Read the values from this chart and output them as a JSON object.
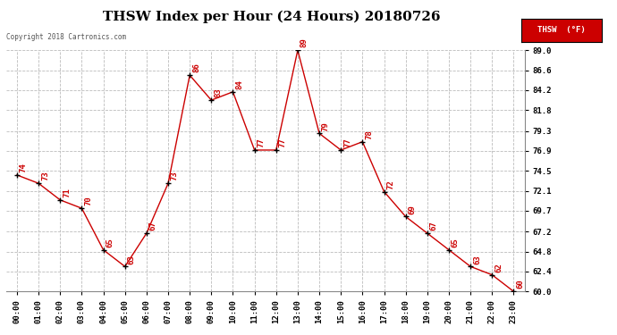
{
  "title": "THSW Index per Hour (24 Hours) 20180726",
  "copyright": "Copyright 2018 Cartronics.com",
  "legend_label": "THSW  (°F)",
  "hours": [
    0,
    1,
    2,
    3,
    4,
    5,
    6,
    7,
    8,
    9,
    10,
    11,
    12,
    13,
    14,
    15,
    16,
    17,
    18,
    19,
    20,
    21,
    22,
    23
  ],
  "values": [
    74,
    73,
    71,
    70,
    65,
    63,
    67,
    73,
    86,
    83,
    84,
    77,
    77,
    89,
    79,
    77,
    78,
    72,
    69,
    67,
    65,
    63,
    62,
    60
  ],
  "ylim_min": 60.0,
  "ylim_max": 89.0,
  "line_color": "#cc0000",
  "marker_color": "#000000",
  "label_color": "#cc0000",
  "bg_color": "#ffffff",
  "grid_color": "#bbbbbb",
  "title_fontsize": 11,
  "label_fontsize": 6.5,
  "tick_fontsize": 6.5,
  "yticks": [
    60.0,
    62.4,
    64.8,
    67.2,
    69.7,
    72.1,
    74.5,
    76.9,
    79.3,
    81.8,
    84.2,
    86.6,
    89.0
  ]
}
